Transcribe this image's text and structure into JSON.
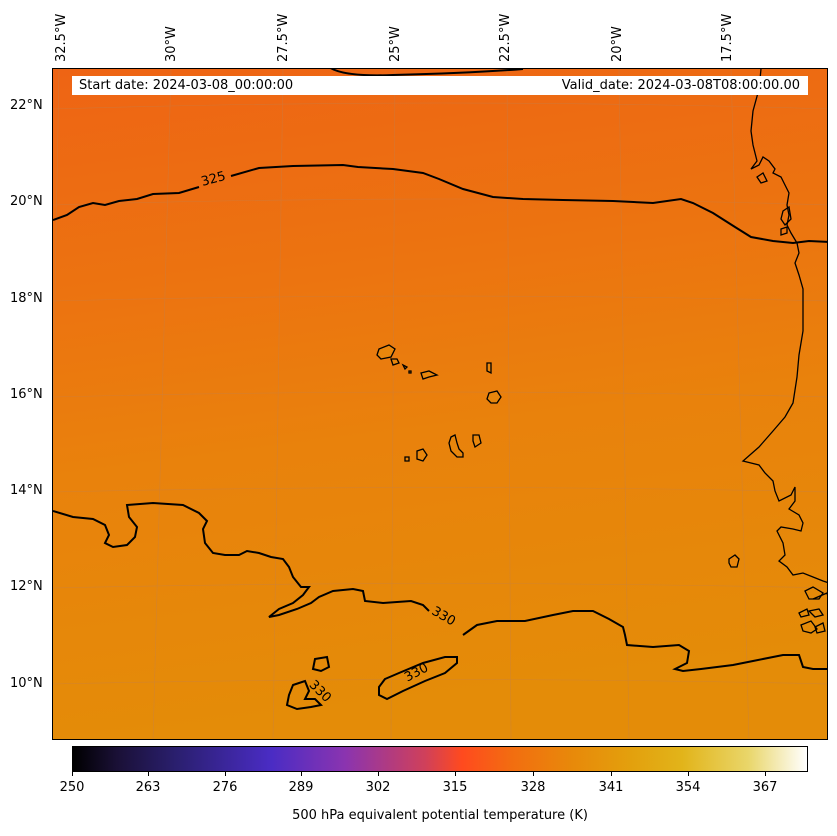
{
  "header": {
    "start_date": "Start date: 2024-03-08_00:00:00",
    "valid_date": "Valid_date: 2024-03-08T08:00:00.00"
  },
  "axes": {
    "longitude_labels": [
      "32.5°W",
      "30°W",
      "27.5°W",
      "25°W",
      "22.5°W",
      "20°W",
      "17.5°W"
    ],
    "latitude_labels": [
      "22°N",
      "20°N",
      "18°N",
      "16°N",
      "14°N",
      "12°N",
      "10°N"
    ]
  },
  "contours": {
    "labels": [
      "325",
      "330",
      "330",
      "330"
    ]
  },
  "colorbar": {
    "ticks": [
      "250",
      "263",
      "276",
      "289",
      "302",
      "315",
      "328",
      "341",
      "354",
      "367"
    ],
    "title": "500 hPa equivalent potential temperature (K)",
    "colors": {
      "low": "#000000",
      "mid_purple": "#4a2cc4",
      "mid_red": "#ff4a1e",
      "map_orange": "#e8890a",
      "high": "#ffffff"
    }
  },
  "map": {
    "fill_top": "#ee6414",
    "fill_bottom": "#e48c08",
    "grid_color": "#c08050"
  }
}
